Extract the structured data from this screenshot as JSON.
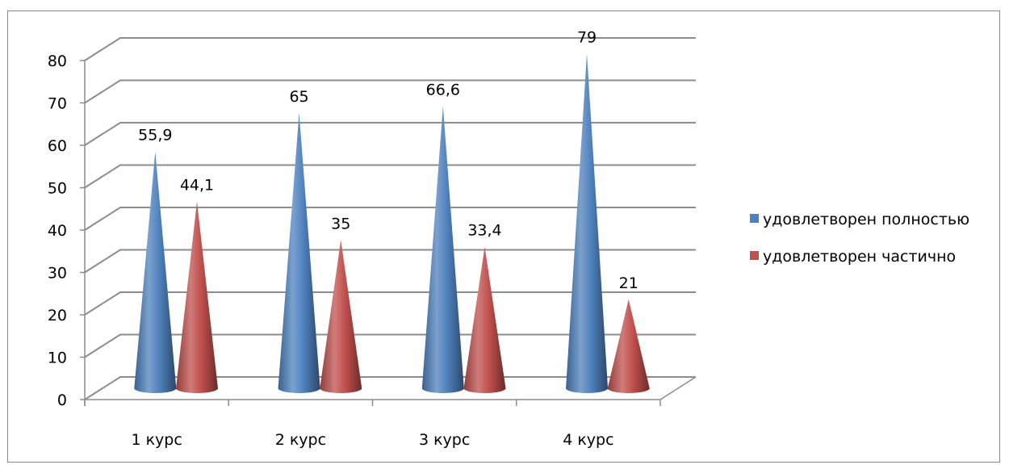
{
  "chart_data": {
    "type": "bar",
    "bar_shape": "cone-3d",
    "categories": [
      "1 курс",
      "2 курс",
      "3 курс",
      "4 курс"
    ],
    "series": [
      {
        "name": "удовлетворен полностью",
        "values": [
          55.9,
          65,
          66.6,
          79
        ],
        "labels": [
          "55,9",
          "65",
          "66,6",
          "79"
        ],
        "color": "#4f81bd"
      },
      {
        "name": "удовлетворен частично",
        "values": [
          44.1,
          35,
          33.4,
          21
        ],
        "labels": [
          "44,1",
          "35",
          "33,4",
          "21"
        ],
        "color": "#c0504d"
      }
    ],
    "yticks": [
      "0",
      "10",
      "20",
      "30",
      "40",
      "50",
      "60",
      "70",
      "80"
    ],
    "ylim": [
      0,
      80
    ],
    "grid": true,
    "legend_position": "right"
  }
}
